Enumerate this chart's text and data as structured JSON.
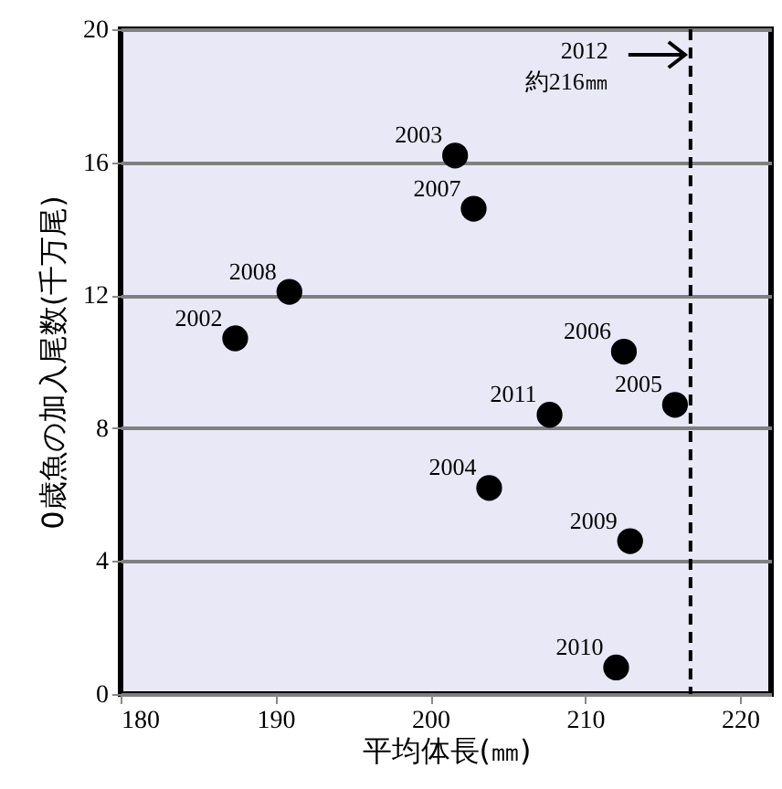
{
  "chart_data": {
    "type": "scatter",
    "xlabel": "平均体長(㎜)",
    "ylabel": "0歳魚の加入尾数(千万尾)",
    "x": [
      187.4,
      201.6,
      203.8,
      215.8,
      212.5,
      202.8,
      190.9,
      212.9,
      212.0,
      207.7
    ],
    "series": [
      {
        "color": "#000000",
        "values": [
          10.7,
          16.2,
          6.2,
          8.7,
          10.3,
          14.6,
          12.1,
          4.6,
          0.8,
          8.4
        ]
      }
    ],
    "annotations": [
      {
        "text": "2002",
        "x": 187.4,
        "y": 10.7
      },
      {
        "text": "2003",
        "x": 201.6,
        "y": 16.2
      },
      {
        "text": "2004",
        "x": 203.8,
        "y": 6.2
      },
      {
        "text": "2005",
        "x": 215.8,
        "y": 8.7
      },
      {
        "text": "2006",
        "x": 212.5,
        "y": 10.3
      },
      {
        "text": "2007",
        "x": 202.8,
        "y": 14.6
      },
      {
        "text": "2008",
        "x": 190.9,
        "y": 12.1
      },
      {
        "text": "2009",
        "x": 212.9,
        "y": 4.6
      },
      {
        "text": "2010",
        "x": 212.0,
        "y": 0.8
      },
      {
        "text": "2011",
        "x": 207.7,
        "y": 8.4
      }
    ],
    "ref_lines": [
      {
        "axis": "x",
        "value": 216.8,
        "label": "2012 約216㎜",
        "color": "#000000",
        "line_style": "dashed"
      }
    ],
    "xlim": [
      180,
      222
    ],
    "xticks": [
      180,
      190,
      200,
      210,
      220
    ],
    "ylim": [
      0,
      20
    ],
    "yticks": [
      0,
      4,
      8,
      12,
      16,
      20
    ],
    "grid": "y",
    "marker": "circle"
  }
}
